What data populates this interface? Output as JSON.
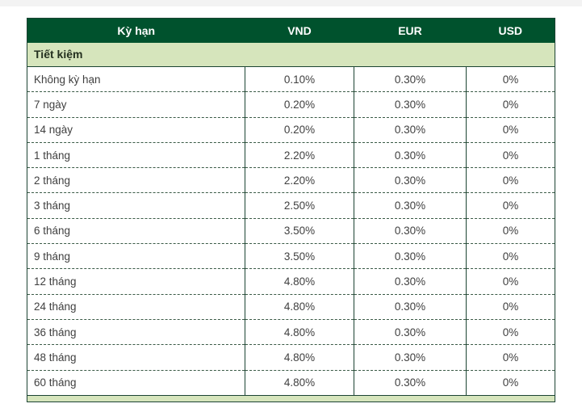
{
  "page": {
    "top_strip_color": "#f3f3f3",
    "background_color": "#ffffff"
  },
  "table": {
    "columns": [
      {
        "key": "term",
        "label": "Kỳ hạn"
      },
      {
        "key": "vnd",
        "label": "VND"
      },
      {
        "key": "eur",
        "label": "EUR"
      },
      {
        "key": "usd",
        "label": "USD"
      }
    ],
    "section_label": "Tiết kiệm",
    "rows": [
      {
        "term": "Không kỳ hạn",
        "vnd": "0.10%",
        "eur": "0.30%",
        "usd": "0%"
      },
      {
        "term": "7 ngày",
        "vnd": "0.20%",
        "eur": "0.30%",
        "usd": "0%"
      },
      {
        "term": "14 ngày",
        "vnd": "0.20%",
        "eur": "0.30%",
        "usd": "0%"
      },
      {
        "term": "1 tháng",
        "vnd": "2.20%",
        "eur": "0.30%",
        "usd": "0%"
      },
      {
        "term": "2 tháng",
        "vnd": "2.20%",
        "eur": "0.30%",
        "usd": "0%"
      },
      {
        "term": "3 tháng",
        "vnd": "2.50%",
        "eur": "0.30%",
        "usd": "0%"
      },
      {
        "term": "6 tháng",
        "vnd": "3.50%",
        "eur": "0.30%",
        "usd": "0%"
      },
      {
        "term": "9 tháng",
        "vnd": "3.50%",
        "eur": "0.30%",
        "usd": "0%"
      },
      {
        "term": "12 tháng",
        "vnd": "4.80%",
        "eur": "0.30%",
        "usd": "0%"
      },
      {
        "term": "24 tháng",
        "vnd": "4.80%",
        "eur": "0.30%",
        "usd": "0%"
      },
      {
        "term": "36 tháng",
        "vnd": "4.80%",
        "eur": "0.30%",
        "usd": "0%"
      },
      {
        "term": "48 tháng",
        "vnd": "4.80%",
        "eur": "0.30%",
        "usd": "0%"
      },
      {
        "term": "60 tháng",
        "vnd": "4.80%",
        "eur": "0.30%",
        "usd": "0%"
      }
    ],
    "colors": {
      "header_bg": "#00522d",
      "header_text": "#ffffff",
      "section_bg": "#d6e5bc",
      "section_text": "#24301f",
      "data_text": "#404040",
      "border_solid": "#1c4433",
      "border_dashed": "#3a5a46"
    }
  }
}
